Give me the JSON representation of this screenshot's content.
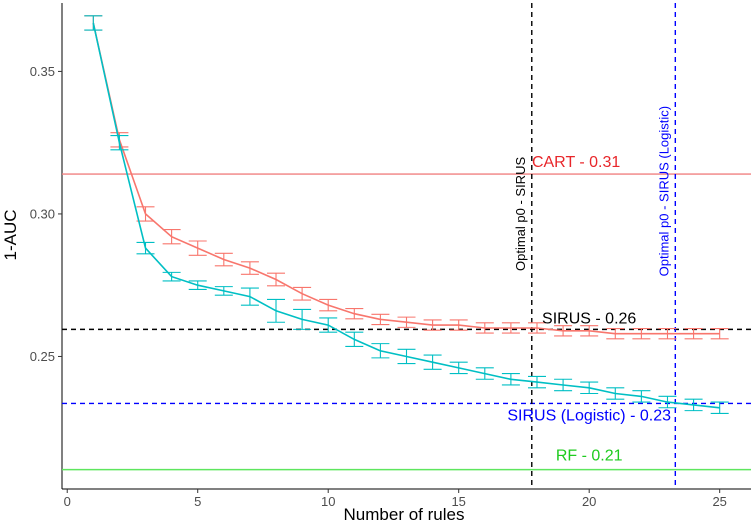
{
  "chart_data": {
    "type": "line",
    "xlabel": "Number of rules",
    "ylabel": "1-AUC",
    "xlim": [
      -0.2,
      26.2
    ],
    "ylim": [
      0.2035,
      0.374
    ],
    "x_ticks": [
      0,
      5,
      10,
      15,
      20,
      25
    ],
    "y_ticks": [
      0.25,
      0.3,
      0.35
    ],
    "y_tick_labels": [
      "0.25",
      "0.30",
      "0.35"
    ],
    "grid": false,
    "legend": "none",
    "series": [
      {
        "color": "#f8766d",
        "x": [
          1,
          2,
          3,
          4,
          5,
          6,
          7,
          8,
          9,
          10,
          11,
          12,
          13,
          14,
          15,
          16,
          17,
          18,
          19,
          20,
          21,
          22,
          23,
          24,
          25
        ],
        "y": [
          0.367,
          0.326,
          0.3,
          0.292,
          0.288,
          0.284,
          0.281,
          0.277,
          0.272,
          0.268,
          0.265,
          0.263,
          0.262,
          0.261,
          0.261,
          0.26,
          0.26,
          0.26,
          0.259,
          0.259,
          0.258,
          0.258,
          0.258,
          0.258,
          0.258
        ],
        "err": [
          0.0025,
          0.0025,
          0.0025,
          0.0025,
          0.0025,
          0.0022,
          0.0022,
          0.0022,
          0.0022,
          0.002,
          0.0018,
          0.0018,
          0.0018,
          0.0018,
          0.0018,
          0.0018,
          0.0018,
          0.0018,
          0.0018,
          0.0018,
          0.0018,
          0.0018,
          0.0018,
          0.0018,
          0.0018
        ]
      },
      {
        "color": "#00bfc4",
        "x": [
          1,
          2,
          3,
          4,
          5,
          6,
          7,
          8,
          9,
          10,
          11,
          12,
          13,
          14,
          15,
          16,
          17,
          18,
          19,
          20,
          21,
          22,
          23,
          24,
          25
        ],
        "y": [
          0.367,
          0.325,
          0.288,
          0.278,
          0.275,
          0.273,
          0.271,
          0.266,
          0.263,
          0.261,
          0.256,
          0.252,
          0.25,
          0.248,
          0.246,
          0.244,
          0.242,
          0.241,
          0.24,
          0.239,
          0.237,
          0.236,
          0.234,
          0.233,
          0.232
        ],
        "err": [
          0.0025,
          0.0025,
          0.002,
          0.0015,
          0.0015,
          0.0015,
          0.003,
          0.004,
          0.0035,
          0.0025,
          0.0025,
          0.0025,
          0.0025,
          0.0025,
          0.002,
          0.002,
          0.002,
          0.002,
          0.002,
          0.002,
          0.002,
          0.002,
          0.002,
          0.002,
          0.002
        ]
      }
    ],
    "hlines": [
      {
        "label": "CART - 0.31",
        "y": 0.314,
        "color": "#e8262a",
        "line_color": "#f08080",
        "dashed": false,
        "label_x": 19.5,
        "label_y": 0.3165
      },
      {
        "label": "SIRUS - 0.26",
        "y": 0.2595,
        "color": "#000000",
        "line_color": "#000000",
        "dashed": true,
        "label_x": 20.0,
        "label_y": 0.2615
      },
      {
        "label": "SIRUS (Logistic) - 0.23",
        "y": 0.2335,
        "color": "#0000ff",
        "line_color": "#0000ff",
        "dashed": true,
        "label_x": 20.0,
        "label_y": 0.2275
      },
      {
        "label": "RF - 0.21",
        "y": 0.2103,
        "color": "#1ecb1e",
        "line_color": "#5ee65e",
        "dashed": false,
        "label_x": 20.0,
        "label_y": 0.2135
      }
    ],
    "vlines": [
      {
        "label": "Optimal p0 - SIRUS",
        "x": 17.8,
        "color": "#000000",
        "dashed": true,
        "label_y": 0.3
      },
      {
        "label": "Optimal p0 - SIRUS (Logistic)",
        "x": 23.3,
        "color": "#0000ff",
        "dashed": true,
        "label_y": 0.308
      }
    ]
  }
}
